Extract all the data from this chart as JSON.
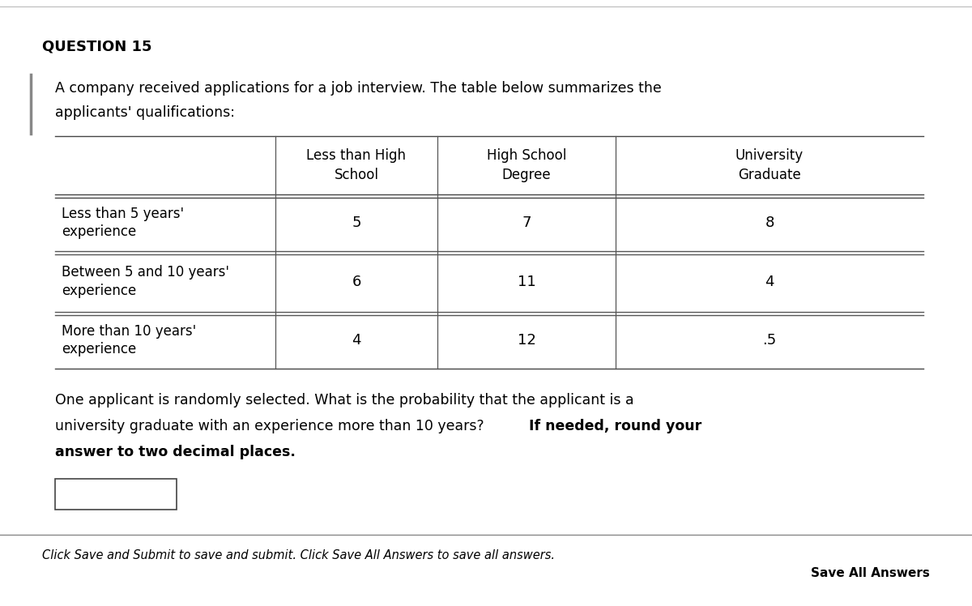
{
  "question_label": "QUESTION 15",
  "intro_line1": "A company received applications for a job interview. The table below summarizes the",
  "intro_line2": "applicants' qualifications:",
  "col_headers": [
    "Less than High\nSchool",
    "High School\nDegree",
    "University\nGraduate"
  ],
  "row_headers": [
    "Less than 5 years'\nexperience",
    "Between 5 and 10 years'\nexperience",
    "More than 10 years'\nexperience"
  ],
  "table_data": [
    [
      "5",
      "7",
      "8"
    ],
    [
      "6",
      "11",
      "4"
    ],
    [
      "4",
      "12",
      ".5"
    ]
  ],
  "q_line1_normal": "One applicant is randomly selected. What is the probability that the applicant is a",
  "q_line2_normal": "university graduate with an experience more than 10 years? ",
  "q_line2_bold": "If needed, round your",
  "q_line3_bold": "answer to two decimal places.",
  "footer_italic": "Click Save and Submit to save and submit. Click Save All Answers to save all answers.",
  "footer_button": "Save All Answers",
  "bg_color": "#ffffff",
  "text_color": "#000000"
}
